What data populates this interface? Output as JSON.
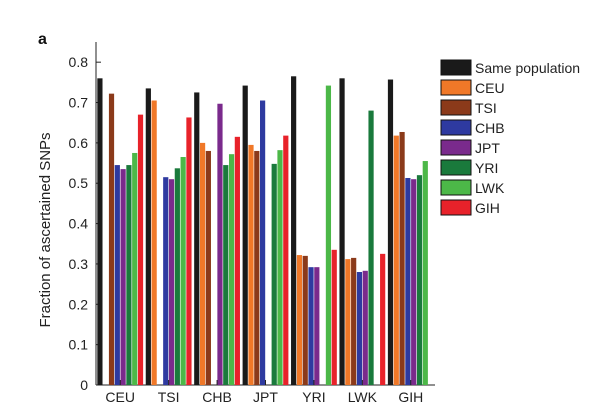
{
  "panel_label": "a",
  "chart_data": {
    "type": "bar",
    "ylabel": "Fraction of ascertained SNPs",
    "xlabel": "",
    "ylim": [
      0,
      0.85
    ],
    "yticks": [
      0,
      0.1,
      0.2,
      0.3,
      0.4,
      0.5,
      0.6,
      0.7,
      0.8
    ],
    "ytick_labels": [
      "0",
      "0.1",
      "0.2",
      "0.3",
      "0.4",
      "0.5",
      "0.6",
      "0.7",
      "0.8"
    ],
    "categories": [
      "CEU",
      "TSI",
      "CHB",
      "JPT",
      "YRI",
      "LWK",
      "GIH"
    ],
    "legend_position": "right",
    "series": [
      {
        "name": "Same population",
        "color": "#1a1a1a",
        "values": [
          0.76,
          0.735,
          0.725,
          0.742,
          0.765,
          0.76,
          0.757
        ]
      },
      {
        "name": "CEU",
        "color": "#f07828",
        "values": [
          null,
          0.705,
          0.6,
          0.595,
          0.322,
          0.312,
          0.618
        ]
      },
      {
        "name": "TSI",
        "color": "#8b3a1a",
        "values": [
          0.722,
          null,
          0.58,
          0.58,
          0.32,
          0.315,
          0.627
        ]
      },
      {
        "name": "CHB",
        "color": "#2e3aa0",
        "values": [
          0.545,
          0.515,
          null,
          0.705,
          0.292,
          0.28,
          0.513
        ]
      },
      {
        "name": "JPT",
        "color": "#7a2a8c",
        "values": [
          0.535,
          0.51,
          0.697,
          null,
          0.292,
          0.283,
          0.51
        ]
      },
      {
        "name": "YRI",
        "color": "#1a7a3c",
        "values": [
          0.545,
          0.537,
          0.545,
          0.548,
          null,
          0.68,
          0.52
        ]
      },
      {
        "name": "LWK",
        "color": "#4cb848",
        "values": [
          0.575,
          0.565,
          0.572,
          0.582,
          0.742,
          null,
          0.555
        ]
      },
      {
        "name": "GIH",
        "color": "#e8222a",
        "values": [
          0.67,
          0.663,
          0.615,
          0.618,
          0.335,
          0.325,
          null
        ]
      }
    ]
  }
}
